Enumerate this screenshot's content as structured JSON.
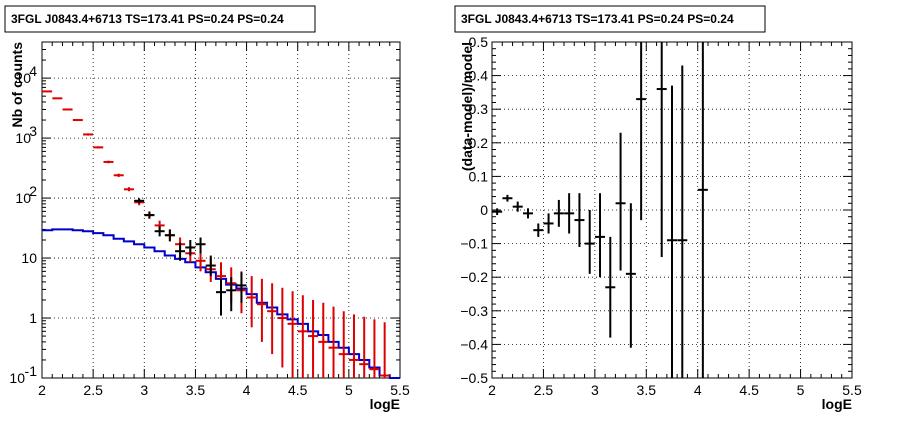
{
  "chart_data": [
    {
      "type": "line",
      "panel": "left",
      "title": "3FGL J0843.4+6713 TS=173.41 PS=0.24 PS=0.24",
      "xlabel": "logE",
      "ylabel": "Nb of counts",
      "xlim": [
        2,
        5.5
      ],
      "ylim": [
        0.1,
        40000
      ],
      "yscale": "log",
      "grid": true,
      "xticks": [
        "2",
        "2.5",
        "3",
        "3.5",
        "4",
        "4.5",
        "5",
        "5.5"
      ],
      "yticks": [
        {
          "value": 0.1,
          "label": "10^-1"
        },
        {
          "value": 1,
          "label": "1"
        },
        {
          "value": 10,
          "label": "10"
        },
        {
          "value": 100,
          "label": "10^2"
        },
        {
          "value": 1000,
          "label": "10^3"
        },
        {
          "value": 10000,
          "label": "10^4"
        }
      ],
      "series": [
        {
          "kind": "step",
          "color": "#0000cc",
          "points": [
            {
              "x": 2.0,
              "y": 29
            },
            {
              "x": 2.1,
              "y": 30
            },
            {
              "x": 2.2,
              "y": 30
            },
            {
              "x": 2.3,
              "y": 29
            },
            {
              "x": 2.4,
              "y": 28
            },
            {
              "x": 2.5,
              "y": 26
            },
            {
              "x": 2.6,
              "y": 24
            },
            {
              "x": 2.7,
              "y": 21
            },
            {
              "x": 2.8,
              "y": 19
            },
            {
              "x": 2.9,
              "y": 17
            },
            {
              "x": 3.0,
              "y": 15
            },
            {
              "x": 3.1,
              "y": 13
            },
            {
              "x": 3.2,
              "y": 11
            },
            {
              "x": 3.3,
              "y": 9.7
            },
            {
              "x": 3.4,
              "y": 8.5
            },
            {
              "x": 3.5,
              "y": 7.0
            },
            {
              "x": 3.6,
              "y": 5.8
            },
            {
              "x": 3.7,
              "y": 4.5
            },
            {
              "x": 3.8,
              "y": 3.6
            },
            {
              "x": 3.9,
              "y": 3.1
            },
            {
              "x": 4.0,
              "y": 2.5
            },
            {
              "x": 4.1,
              "y": 1.8
            },
            {
              "x": 4.2,
              "y": 1.5
            },
            {
              "x": 4.3,
              "y": 1.15
            },
            {
              "x": 4.4,
              "y": 0.95
            },
            {
              "x": 4.5,
              "y": 0.8
            },
            {
              "x": 4.6,
              "y": 0.6
            },
            {
              "x": 4.7,
              "y": 0.52
            },
            {
              "x": 4.8,
              "y": 0.4
            },
            {
              "x": 4.9,
              "y": 0.32
            },
            {
              "x": 5.0,
              "y": 0.25
            },
            {
              "x": 5.1,
              "y": 0.2
            },
            {
              "x": 5.2,
              "y": 0.15
            },
            {
              "x": 5.3,
              "y": 0.11
            },
            {
              "x": 5.4,
              "y": 0.1
            }
          ]
        },
        {
          "kind": "model_errorbars",
          "color": "#dd0000",
          "points": [
            {
              "x": 2.05,
              "y": 6000,
              "lo": 6000,
              "hi": 6000
            },
            {
              "x": 2.15,
              "y": 4600,
              "lo": 4600,
              "hi": 4600
            },
            {
              "x": 2.25,
              "y": 3000,
              "lo": 3000,
              "hi": 3000
            },
            {
              "x": 2.35,
              "y": 2000,
              "lo": 2000,
              "hi": 2000
            },
            {
              "x": 2.45,
              "y": 1150,
              "lo": 1100,
              "hi": 1200
            },
            {
              "x": 2.55,
              "y": 700,
              "lo": 670,
              "hi": 730
            },
            {
              "x": 2.65,
              "y": 400,
              "lo": 380,
              "hi": 420
            },
            {
              "x": 2.75,
              "y": 240,
              "lo": 225,
              "hi": 255
            },
            {
              "x": 2.85,
              "y": 140,
              "lo": 130,
              "hi": 152
            },
            {
              "x": 2.95,
              "y": 85,
              "lo": 76,
              "hi": 95
            },
            {
              "x": 3.05,
              "y": 52,
              "lo": 45,
              "hi": 60
            },
            {
              "x": 3.15,
              "y": 35,
              "lo": 29,
              "hi": 42
            },
            {
              "x": 3.25,
              "y": 24,
              "lo": 19,
              "hi": 30
            },
            {
              "x": 3.35,
              "y": 17,
              "lo": 13,
              "hi": 22
            },
            {
              "x": 3.45,
              "y": 12,
              "lo": 8.5,
              "hi": 16
            },
            {
              "x": 3.55,
              "y": 9,
              "lo": 6,
              "hi": 13
            },
            {
              "x": 3.65,
              "y": 6.5,
              "lo": 4,
              "hi": 10
            },
            {
              "x": 3.75,
              "y": 5,
              "lo": 2.9,
              "hi": 8.5
            },
            {
              "x": 3.85,
              "y": 3.8,
              "lo": 1.8,
              "hi": 7
            },
            {
              "x": 3.95,
              "y": 2.9,
              "lo": 1.2,
              "hi": 6
            },
            {
              "x": 4.05,
              "y": 2.2,
              "lo": 0.7,
              "hi": 5
            },
            {
              "x": 4.15,
              "y": 1.7,
              "lo": 0.4,
              "hi": 4.5
            },
            {
              "x": 4.25,
              "y": 1.3,
              "lo": 0.25,
              "hi": 3.8
            },
            {
              "x": 4.35,
              "y": 1.0,
              "lo": 0.15,
              "hi": 3.2
            },
            {
              "x": 4.45,
              "y": 0.8,
              "lo": 0.1,
              "hi": 2.8
            },
            {
              "x": 4.55,
              "y": 0.6,
              "lo": 0.1,
              "hi": 2.4
            },
            {
              "x": 4.65,
              "y": 0.5,
              "lo": 0.1,
              "hi": 2.0
            },
            {
              "x": 4.75,
              "y": 0.4,
              "lo": 0.1,
              "hi": 1.8
            },
            {
              "x": 4.85,
              "y": 0.32,
              "lo": 0.1,
              "hi": 1.55
            },
            {
              "x": 4.95,
              "y": 0.25,
              "lo": 0.1,
              "hi": 1.3
            },
            {
              "x": 5.05,
              "y": 0.2,
              "lo": 0.1,
              "hi": 1.15
            },
            {
              "x": 5.15,
              "y": 0.17,
              "lo": 0.1,
              "hi": 1.05
            },
            {
              "x": 5.25,
              "y": 0.14,
              "lo": 0.1,
              "hi": 0.95
            },
            {
              "x": 5.35,
              "y": 0.11,
              "lo": 0.1,
              "hi": 0.85
            }
          ]
        },
        {
          "kind": "data_errorbars",
          "color": "#000000",
          "points": [
            {
              "x": 2.95,
              "y": 90,
              "lo": 82,
              "hi": 99
            },
            {
              "x": 3.05,
              "y": 52,
              "lo": 46,
              "hi": 59
            },
            {
              "x": 3.15,
              "y": 28,
              "lo": 23,
              "hi": 34
            },
            {
              "x": 3.25,
              "y": 24,
              "lo": 19,
              "hi": 30
            },
            {
              "x": 3.35,
              "y": 13,
              "lo": 9,
              "hi": 18
            },
            {
              "x": 3.45,
              "y": 15,
              "lo": 11,
              "hi": 20
            },
            {
              "x": 3.55,
              "y": 17,
              "lo": 12,
              "hi": 22
            },
            {
              "x": 3.65,
              "y": 7.5,
              "lo": 5,
              "hi": 11
            },
            {
              "x": 3.75,
              "y": 2.7,
              "lo": 1.1,
              "hi": 4.5
            },
            {
              "x": 3.85,
              "y": 2.9,
              "lo": 1.3,
              "hi": 4.8
            },
            {
              "x": 3.95,
              "y": 3.5,
              "lo": 1.8,
              "hi": 5.8
            }
          ]
        }
      ]
    },
    {
      "type": "scatter",
      "panel": "right",
      "title": "3FGL J0843.4+6713 TS=173.41 PS=0.24 PS=0.24",
      "xlabel": "logE",
      "ylabel": "(data-model)/model",
      "xlim": [
        2,
        5.5
      ],
      "ylim": [
        -0.5,
        0.5
      ],
      "grid": true,
      "xticks": [
        "2",
        "2.5",
        "3",
        "3.5",
        "4",
        "4.5",
        "5",
        "5.5"
      ],
      "yticks": [
        "−0.5",
        "−0.4",
        "−0.3",
        "−0.2",
        "−0.1",
        "0",
        "0.1",
        "0.2",
        "0.3",
        "0.4",
        "0.5"
      ],
      "series": [
        {
          "kind": "residual_errorbars",
          "color": "#000000",
          "points": [
            {
              "x": 2.05,
              "y": -0.005,
              "lo": -0.015,
              "hi": 0.005
            },
            {
              "x": 2.15,
              "y": 0.035,
              "lo": 0.025,
              "hi": 0.045
            },
            {
              "x": 2.25,
              "y": 0.01,
              "lo": -0.005,
              "hi": 0.025
            },
            {
              "x": 2.35,
              "y": -0.01,
              "lo": -0.025,
              "hi": 0.005
            },
            {
              "x": 2.45,
              "y": -0.06,
              "lo": -0.08,
              "hi": -0.04
            },
            {
              "x": 2.55,
              "y": -0.04,
              "lo": -0.07,
              "hi": -0.01
            },
            {
              "x": 2.65,
              "y": -0.01,
              "lo": -0.05,
              "hi": 0.03
            },
            {
              "x": 2.75,
              "y": -0.01,
              "lo": -0.07,
              "hi": 0.05
            },
            {
              "x": 2.85,
              "y": -0.03,
              "lo": -0.11,
              "hi": 0.05
            },
            {
              "x": 2.95,
              "y": -0.1,
              "lo": -0.19,
              "hi": 0.0
            },
            {
              "x": 3.05,
              "y": -0.08,
              "lo": -0.2,
              "hi": 0.05
            },
            {
              "x": 3.15,
              "y": -0.23,
              "lo": -0.38,
              "hi": -0.08
            },
            {
              "x": 3.25,
              "y": 0.02,
              "lo": -0.18,
              "hi": 0.23
            },
            {
              "x": 3.35,
              "y": -0.19,
              "lo": -0.41,
              "hi": 0.02
            },
            {
              "x": 3.45,
              "y": 0.33,
              "lo": -0.03,
              "hi": 0.5
            },
            {
              "x": 3.65,
              "y": 0.36,
              "lo": -0.14,
              "hi": 0.5
            },
            {
              "x": 3.75,
              "y": -0.09,
              "lo": -0.5,
              "hi": 0.37
            },
            {
              "x": 3.85,
              "y": -0.09,
              "lo": -0.5,
              "hi": 0.43
            },
            {
              "x": 4.05,
              "y": 0.06,
              "lo": -0.5,
              "hi": 0.5
            }
          ]
        }
      ]
    }
  ]
}
